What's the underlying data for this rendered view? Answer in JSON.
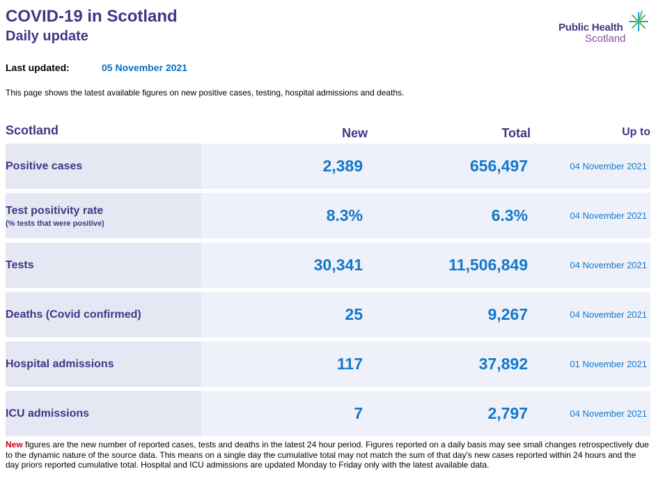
{
  "header": {
    "title": "COVID-19 in Scotland",
    "subtitle": "Daily update"
  },
  "logo": {
    "line1": "Public Health",
    "line2": "Scotland",
    "colors": {
      "primary": "#3f3685",
      "secondary": "#8a4b9e",
      "star_green": "#5cb85c",
      "star_blue": "#1a9fd9"
    }
  },
  "last_updated": {
    "label": "Last updated:",
    "value": "05 November 2021"
  },
  "intro": "This page shows the latest available figures on new positive cases, testing, hospital admissions and deaths.",
  "table": {
    "headers": {
      "region": "Scotland",
      "new": "New",
      "total": "Total",
      "up_to": "Up to"
    },
    "rows": [
      {
        "label": "Positive cases",
        "sublabel": "",
        "new": "2,389",
        "total": "656,497",
        "up_to": "04 November 2021"
      },
      {
        "label": "Test positivity rate",
        "sublabel": "(% tests that were positive)",
        "new": "8.3%",
        "total": "6.3%",
        "up_to": "04 November 2021"
      },
      {
        "label": "Tests",
        "sublabel": "",
        "new": "30,341",
        "total": "11,506,849",
        "up_to": "04 November 2021"
      },
      {
        "label": "Deaths (Covid confirmed)",
        "sublabel": "",
        "new": "25",
        "total": "9,267",
        "up_to": "04 November 2021"
      },
      {
        "label": "Hospital admissions",
        "sublabel": "",
        "new": "117",
        "total": "37,892",
        "up_to": "01 November 2021"
      },
      {
        "label": "ICU admissions",
        "sublabel": "",
        "new": "7",
        "total": "2,797",
        "up_to": "04 November 2021"
      }
    ]
  },
  "footnote": {
    "highlight": "New",
    "text": " figures are the new number of reported cases, tests and deaths in the latest 24 hour period. Figures reported on a daily basis may see small changes retrospectively due to the dynamic nature of the source data. This means on a single day the cumulative total may not match the sum of that day's new cases reported within 24 hours and the day priors reported cumulative total. Hospital and ICU admissions are updated Monday to Friday only with the latest available data."
  },
  "colors": {
    "heading": "#3f3685",
    "value": "#1278c9",
    "row_bg": "#eef1f9",
    "label_bg": "#e5e8f3",
    "new_highlight": "#c4001a"
  }
}
